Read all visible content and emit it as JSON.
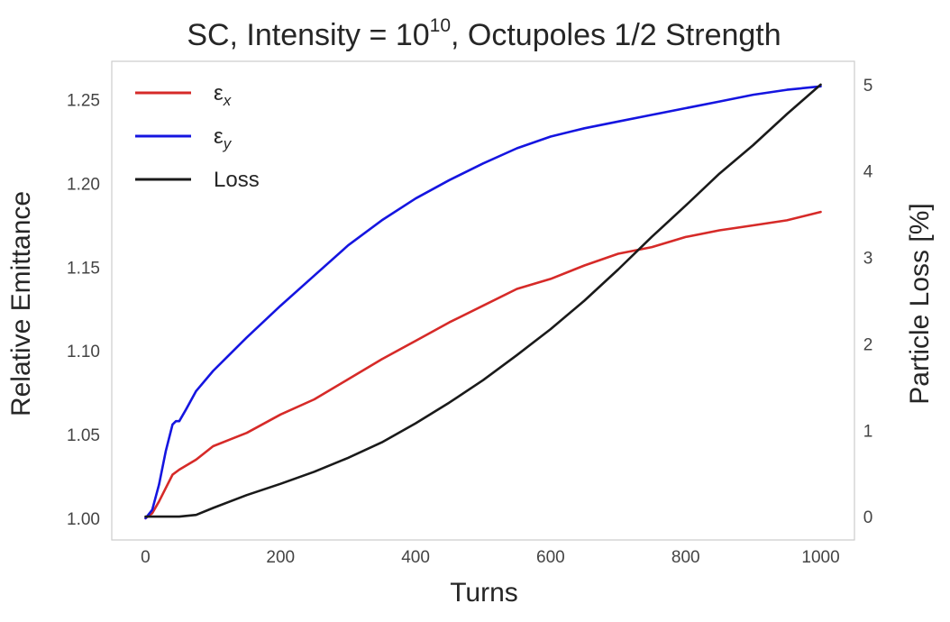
{
  "chart_data": {
    "type": "line",
    "title": {
      "prefix": "SC, Intensity = ",
      "base": "10",
      "exponent": "10",
      "suffix": ", Octupoles 1/2 Strength"
    },
    "xlabel": "Turns",
    "ylabel_left": "Relative Emittance",
    "ylabel_right": "Particle Loss [%]",
    "xlim": [
      -50,
      1050
    ],
    "ylim_left": [
      0.987,
      1.273
    ],
    "ylim_right": [
      -0.27,
      5.27
    ],
    "x_ticks": [
      0,
      200,
      400,
      600,
      800,
      1000
    ],
    "y_ticks_left": [
      1.0,
      1.05,
      1.1,
      1.15,
      1.2,
      1.25
    ],
    "y_ticks_right": [
      0,
      1,
      2,
      3,
      4,
      5
    ],
    "grid": false,
    "legend_position": "top-left",
    "series": [
      {
        "name": "εx",
        "legend_base": "ε",
        "legend_sub": "x",
        "axis": "left",
        "color": "#d62a28",
        "x": [
          0,
          10,
          20,
          30,
          40,
          50,
          75,
          100,
          150,
          200,
          250,
          300,
          350,
          400,
          450,
          500,
          550,
          600,
          650,
          700,
          750,
          800,
          850,
          900,
          950,
          1000
        ],
        "y": [
          1.0,
          1.003,
          1.01,
          1.018,
          1.026,
          1.029,
          1.035,
          1.043,
          1.051,
          1.062,
          1.071,
          1.083,
          1.095,
          1.106,
          1.117,
          1.127,
          1.137,
          1.143,
          1.151,
          1.158,
          1.162,
          1.168,
          1.172,
          1.175,
          1.178,
          1.183
        ]
      },
      {
        "name": "εy",
        "legend_base": "ε",
        "legend_sub": "y",
        "axis": "left",
        "color": "#1515e0",
        "x": [
          0,
          10,
          20,
          30,
          40,
          45,
          50,
          60,
          75,
          100,
          150,
          200,
          250,
          300,
          350,
          400,
          450,
          500,
          550,
          600,
          650,
          700,
          750,
          800,
          850,
          900,
          950,
          1000
        ],
        "y": [
          1.0,
          1.005,
          1.02,
          1.04,
          1.056,
          1.058,
          1.058,
          1.065,
          1.076,
          1.088,
          1.108,
          1.127,
          1.145,
          1.163,
          1.178,
          1.191,
          1.202,
          1.212,
          1.221,
          1.228,
          1.233,
          1.237,
          1.241,
          1.245,
          1.249,
          1.253,
          1.256,
          1.258
        ]
      },
      {
        "name": "Loss",
        "legend_base": "Loss",
        "legend_sub": "",
        "axis": "right",
        "color": "#1a1a1a",
        "x": [
          0,
          25,
          50,
          75,
          100,
          150,
          200,
          250,
          300,
          350,
          400,
          450,
          500,
          550,
          600,
          650,
          700,
          750,
          800,
          850,
          900,
          950,
          1000
        ],
        "y": [
          0,
          0,
          0,
          0.02,
          0.1,
          0.25,
          0.38,
          0.52,
          0.68,
          0.86,
          1.08,
          1.32,
          1.58,
          1.87,
          2.17,
          2.5,
          2.86,
          3.24,
          3.6,
          3.97,
          4.3,
          4.66,
          5.0
        ]
      }
    ]
  }
}
